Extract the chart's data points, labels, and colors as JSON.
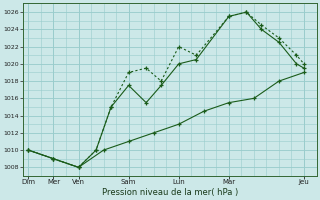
{
  "background_color": "#cce8e8",
  "grid_color": "#99cccc",
  "line_color": "#1a5c1a",
  "xlabel": "Pression niveau de la mer( hPa )",
  "ylim": [
    1007,
    1027
  ],
  "yticks": [
    1008,
    1010,
    1012,
    1014,
    1016,
    1018,
    1020,
    1022,
    1024,
    1026
  ],
  "x_day_positions": [
    0,
    1,
    2,
    4,
    6,
    8,
    11
  ],
  "x_day_labels": [
    "Dim",
    "Mer",
    "Ven",
    "Sam",
    "Lun",
    "Mar",
    "Jeu"
  ],
  "xlim": [
    -0.2,
    11.5
  ],
  "line1_solid": {
    "x": [
      0,
      1,
      2,
      2.7,
      3.3,
      4,
      4.7,
      5.3,
      6,
      6.7,
      8,
      8.7,
      9.3,
      10,
      10.7,
      11
    ],
    "y": [
      1010,
      1009,
      1008,
      1010,
      1015,
      1017.5,
      1015.5,
      1017.5,
      1020,
      1020.5,
      1025.5,
      1026,
      1024,
      1022.5,
      1020,
      1019.5
    ]
  },
  "line2_dotted": {
    "x": [
      0,
      1,
      2,
      2.7,
      3.3,
      4,
      4.7,
      5.3,
      6,
      6.7,
      8,
      8.7,
      9.3,
      10,
      10.7,
      11
    ],
    "y": [
      1010,
      1009,
      1008,
      1010,
      1015,
      1019,
      1019.5,
      1018,
      1022,
      1021,
      1025.5,
      1026,
      1024.5,
      1023,
      1021,
      1020
    ]
  },
  "line3_solid_flat": {
    "x": [
      0,
      1,
      2,
      3,
      4,
      5,
      6,
      7,
      8,
      9,
      10,
      11
    ],
    "y": [
      1010,
      1009,
      1008,
      1010,
      1011,
      1012,
      1013,
      1014.5,
      1015.5,
      1016,
      1018,
      1019
    ]
  }
}
